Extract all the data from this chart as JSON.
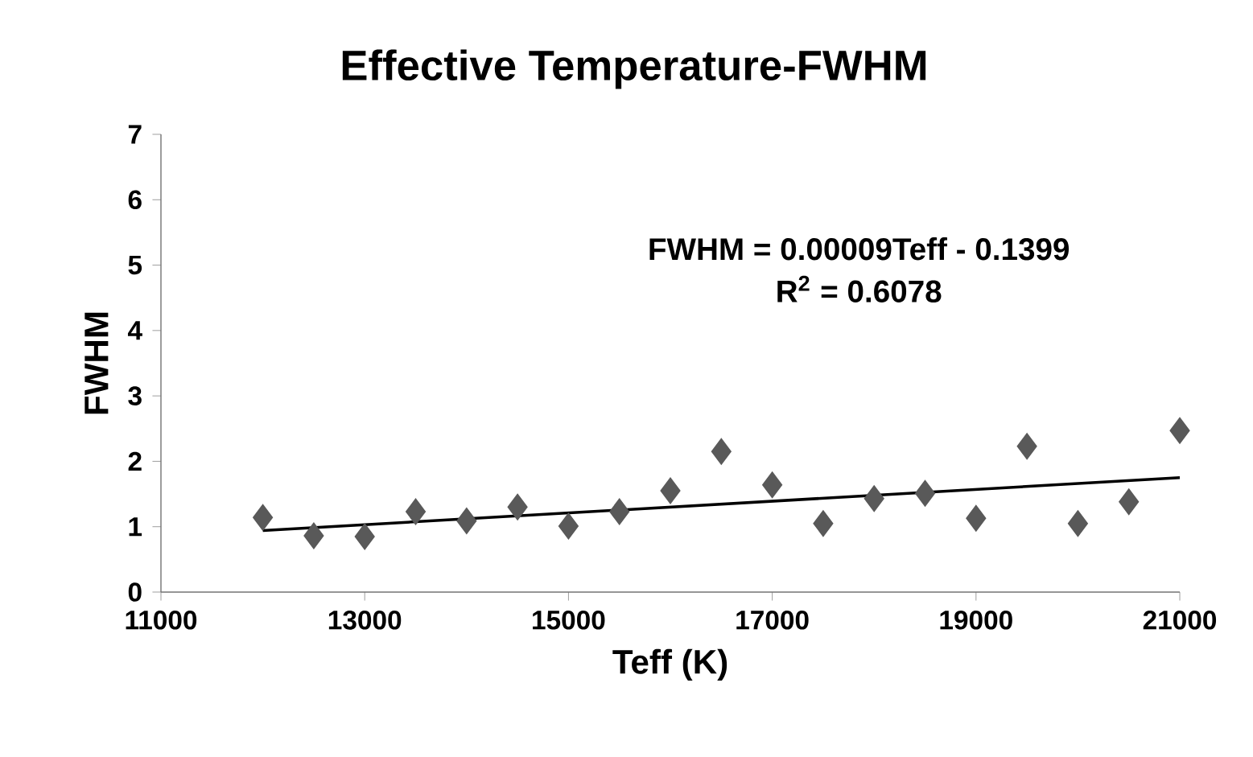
{
  "chart_data": {
    "type": "scatter",
    "title": "Effective Temperature-FWHM",
    "xlabel": "Teff (K)",
    "ylabel": "FWHM",
    "xlim": [
      11000,
      21000
    ],
    "ylim": [
      0,
      7
    ],
    "xticks": [
      11000,
      13000,
      15000,
      17000,
      19000,
      21000
    ],
    "yticks": [
      0,
      1,
      2,
      3,
      4,
      5,
      6,
      7
    ],
    "grid": false,
    "annotations": [
      "FWHM = 0.00009Teff - 0.1399",
      "R$^{2}$ = 0.6078"
    ],
    "series": [
      {
        "marker": "diamond",
        "color": "#595959",
        "x": [
          12000,
          12500,
          13000,
          13500,
          14000,
          14500,
          15000,
          15500,
          16000,
          16500,
          17000,
          17500,
          18000,
          18500,
          19000,
          19500,
          20000,
          20500,
          21000
        ],
        "values": [
          1.14,
          0.86,
          0.85,
          1.23,
          1.09,
          1.3,
          1.01,
          1.23,
          1.55,
          2.15,
          1.64,
          1.05,
          1.43,
          1.51,
          1.13,
          2.23,
          1.05,
          1.38,
          2.47
        ]
      },
      {
        "type": "line",
        "marker": "none",
        "color": "#000000",
        "x": [
          12000,
          21000
        ],
        "values": [
          0.94,
          1.75
        ]
      }
    ]
  }
}
